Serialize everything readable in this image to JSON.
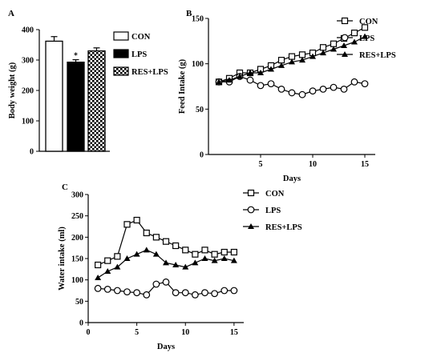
{
  "chart_data": [
    {
      "panel": "A",
      "type": "bar",
      "title": "",
      "ylabel": "Body weight (g)",
      "xlabel": "",
      "ylim": [
        0,
        400
      ],
      "yticks": [
        0,
        100,
        200,
        300,
        400
      ],
      "categories": [
        "CON",
        "LPS",
        "RES+LPS"
      ],
      "values": [
        362,
        293,
        330
      ],
      "errors": [
        15,
        8,
        10
      ],
      "annotations": [
        {
          "category": "LPS",
          "text": "*"
        }
      ],
      "legend": [
        "CON",
        "LPS",
        "RES+LPS"
      ],
      "legend_position": "right",
      "fills": [
        "white",
        "black",
        "checkered"
      ]
    },
    {
      "panel": "B",
      "type": "line",
      "title": "",
      "ylabel": "Feed Intake (g)",
      "xlabel": "Days",
      "xlim": [
        0,
        16
      ],
      "ylim": [
        0,
        150
      ],
      "xticks": [
        5,
        10,
        15
      ],
      "yticks": [
        0,
        50,
        100,
        150
      ],
      "x": [
        1,
        2,
        3,
        4,
        5,
        6,
        7,
        8,
        9,
        10,
        11,
        12,
        13,
        14,
        15
      ],
      "series": [
        {
          "name": "CON",
          "marker": "square",
          "values": [
            80,
            84,
            90,
            90,
            94,
            98,
            104,
            108,
            110,
            112,
            118,
            122,
            128,
            134,
            140
          ]
        },
        {
          "name": "LPS",
          "marker": "circle",
          "values": [
            80,
            80,
            86,
            82,
            76,
            78,
            72,
            68,
            66,
            70,
            72,
            74,
            72,
            80,
            78
          ]
        },
        {
          "name": "RES+LPS",
          "marker": "triangle",
          "values": [
            80,
            82,
            86,
            90,
            90,
            94,
            98,
            102,
            104,
            108,
            112,
            116,
            120,
            124,
            130
          ]
        }
      ],
      "legend_position": "top-right"
    },
    {
      "panel": "C",
      "type": "line",
      "title": "",
      "ylabel": "Water intake (ml)",
      "xlabel": "Days",
      "xlim": [
        0,
        16
      ],
      "ylim": [
        0,
        300
      ],
      "xticks": [
        0,
        5,
        10,
        15
      ],
      "yticks": [
        0,
        50,
        100,
        150,
        200,
        250,
        300
      ],
      "x": [
        1,
        2,
        3,
        4,
        5,
        6,
        7,
        8,
        9,
        10,
        11,
        12,
        13,
        14,
        15
      ],
      "series": [
        {
          "name": "CON",
          "marker": "square",
          "values": [
            135,
            145,
            155,
            230,
            240,
            210,
            200,
            190,
            180,
            170,
            160,
            170,
            160,
            165,
            165
          ]
        },
        {
          "name": "LPS",
          "marker": "circle",
          "values": [
            80,
            78,
            75,
            72,
            70,
            65,
            90,
            95,
            70,
            70,
            65,
            70,
            68,
            75,
            75
          ]
        },
        {
          "name": "RES+LPS",
          "marker": "triangle",
          "values": [
            105,
            120,
            130,
            150,
            160,
            170,
            160,
            140,
            135,
            130,
            140,
            150,
            145,
            150,
            145
          ]
        }
      ],
      "legend_position": "top-right"
    }
  ]
}
